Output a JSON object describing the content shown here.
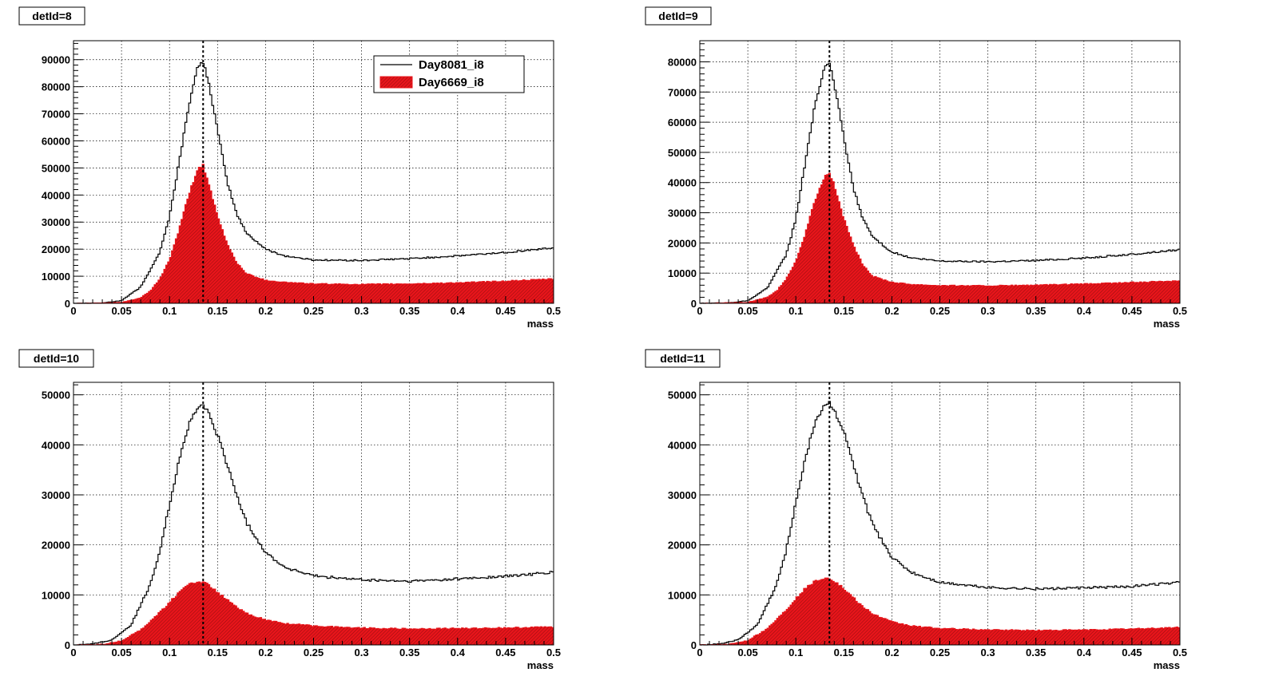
{
  "chart_data": [
    {
      "type": "line",
      "title": "detId=8",
      "xlabel": "mass",
      "ylabel": "",
      "xlim": [
        0,
        0.5
      ],
      "ylim": [
        0,
        97000
      ],
      "x_ticks": [
        "0",
        "0.05",
        "0.1",
        "0.15",
        "0.2",
        "0.25",
        "0.3",
        "0.35",
        "0.4",
        "0.45",
        "0.5"
      ],
      "y_ticks": [
        "0",
        "10000",
        "20000",
        "30000",
        "40000",
        "50000",
        "60000",
        "70000",
        "80000",
        "90000"
      ],
      "grid": true,
      "legend_position": "top-right",
      "reference_line_x": 0.135,
      "series": [
        {
          "name": "Day8081_i8",
          "style": "line",
          "color": "#000000",
          "x": [
            0,
            0.03,
            0.05,
            0.07,
            0.09,
            0.1,
            0.11,
            0.12,
            0.13,
            0.135,
            0.14,
            0.15,
            0.16,
            0.17,
            0.18,
            0.2,
            0.22,
            0.25,
            0.3,
            0.35,
            0.4,
            0.45,
            0.5
          ],
          "y": [
            0,
            100,
            1000,
            6000,
            19000,
            32000,
            52000,
            73000,
            88000,
            89000,
            83000,
            64000,
            45000,
            33000,
            26000,
            20000,
            17500,
            16000,
            15800,
            16500,
            17500,
            18800,
            20500
          ]
        },
        {
          "name": "Day6669_i8",
          "style": "filled",
          "color": "#e8151b",
          "x": [
            0,
            0.05,
            0.07,
            0.08,
            0.09,
            0.1,
            0.11,
            0.12,
            0.13,
            0.135,
            0.14,
            0.15,
            0.16,
            0.17,
            0.18,
            0.2,
            0.22,
            0.25,
            0.3,
            0.35,
            0.4,
            0.45,
            0.5
          ],
          "y": [
            0,
            300,
            2000,
            4500,
            9000,
            16000,
            27000,
            40000,
            50000,
            51000,
            45000,
            32000,
            22000,
            15000,
            11000,
            8500,
            7800,
            7200,
            7000,
            7200,
            7600,
            8200,
            9000
          ]
        }
      ]
    },
    {
      "type": "line",
      "title": "detId=9",
      "xlabel": "mass",
      "ylabel": "",
      "xlim": [
        0,
        0.5
      ],
      "ylim": [
        0,
        87000
      ],
      "x_ticks": [
        "0",
        "0.05",
        "0.1",
        "0.15",
        "0.2",
        "0.25",
        "0.3",
        "0.35",
        "0.4",
        "0.45",
        "0.5"
      ],
      "y_ticks": [
        "0",
        "10000",
        "20000",
        "30000",
        "40000",
        "50000",
        "60000",
        "70000",
        "80000"
      ],
      "grid": true,
      "reference_line_x": 0.135,
      "series": [
        {
          "name": "Day8081_i8",
          "style": "line",
          "color": "#000000",
          "x": [
            0,
            0.03,
            0.05,
            0.07,
            0.09,
            0.1,
            0.11,
            0.12,
            0.13,
            0.135,
            0.14,
            0.15,
            0.16,
            0.17,
            0.18,
            0.2,
            0.22,
            0.25,
            0.3,
            0.35,
            0.4,
            0.45,
            0.5
          ],
          "y": [
            0,
            100,
            900,
            5000,
            16000,
            28000,
            47000,
            66000,
            78000,
            79000,
            73000,
            55000,
            38000,
            28000,
            22000,
            17000,
            15000,
            14000,
            13800,
            14200,
            15000,
            16200,
            17800
          ]
        },
        {
          "name": "Day6669_i8",
          "style": "filled",
          "color": "#e8151b",
          "x": [
            0,
            0.05,
            0.07,
            0.08,
            0.09,
            0.1,
            0.11,
            0.12,
            0.13,
            0.135,
            0.14,
            0.15,
            0.16,
            0.17,
            0.18,
            0.2,
            0.22,
            0.25,
            0.3,
            0.35,
            0.4,
            0.45,
            0.5
          ],
          "y": [
            0,
            300,
            2000,
            4000,
            8000,
            14000,
            23000,
            34000,
            42000,
            43500,
            39000,
            28000,
            19000,
            12500,
            9000,
            7000,
            6300,
            5900,
            5800,
            6000,
            6400,
            6900,
            7500
          ]
        }
      ]
    },
    {
      "type": "line",
      "title": "detId=10",
      "xlabel": "mass",
      "ylabel": "",
      "xlim": [
        0,
        0.5
      ],
      "ylim": [
        0,
        52500
      ],
      "x_ticks": [
        "0",
        "0.05",
        "0.1",
        "0.15",
        "0.2",
        "0.25",
        "0.3",
        "0.35",
        "0.4",
        "0.45",
        "0.5"
      ],
      "y_ticks": [
        "0",
        "10000",
        "20000",
        "30000",
        "40000",
        "50000"
      ],
      "grid": true,
      "reference_line_x": 0.135,
      "series": [
        {
          "name": "Day8081_i8",
          "style": "line",
          "color": "#000000",
          "x": [
            0,
            0.02,
            0.04,
            0.06,
            0.08,
            0.09,
            0.1,
            0.11,
            0.12,
            0.13,
            0.135,
            0.14,
            0.15,
            0.16,
            0.17,
            0.18,
            0.2,
            0.22,
            0.25,
            0.3,
            0.35,
            0.4,
            0.45,
            0.5
          ],
          "y": [
            0,
            200,
            1000,
            4000,
            12000,
            19000,
            28000,
            37000,
            44000,
            47500,
            48000,
            46500,
            42000,
            36000,
            30000,
            24500,
            18500,
            15500,
            13800,
            13000,
            12700,
            13200,
            13700,
            14500
          ]
        },
        {
          "name": "Day6669_i8",
          "style": "filled",
          "color": "#e8151b",
          "x": [
            0,
            0.03,
            0.05,
            0.07,
            0.09,
            0.1,
            0.11,
            0.12,
            0.13,
            0.135,
            0.14,
            0.15,
            0.16,
            0.17,
            0.18,
            0.2,
            0.22,
            0.25,
            0.3,
            0.35,
            0.4,
            0.45,
            0.5
          ],
          "y": [
            0,
            100,
            800,
            3000,
            6500,
            8500,
            10500,
            12000,
            12700,
            12600,
            12000,
            10500,
            9000,
            7500,
            6300,
            5000,
            4300,
            3800,
            3400,
            3200,
            3300,
            3400,
            3600
          ]
        }
      ]
    },
    {
      "type": "line",
      "title": "detId=11",
      "xlabel": "mass",
      "ylabel": "",
      "xlim": [
        0,
        0.5
      ],
      "ylim": [
        0,
        52500
      ],
      "x_ticks": [
        "0",
        "0.05",
        "0.1",
        "0.15",
        "0.2",
        "0.25",
        "0.3",
        "0.35",
        "0.4",
        "0.45",
        "0.5"
      ],
      "y_ticks": [
        "0",
        "10000",
        "20000",
        "30000",
        "40000",
        "50000"
      ],
      "grid": true,
      "reference_line_x": 0.135,
      "series": [
        {
          "name": "Day8081_i8",
          "style": "line",
          "color": "#000000",
          "x": [
            0,
            0.02,
            0.04,
            0.06,
            0.08,
            0.09,
            0.1,
            0.11,
            0.12,
            0.13,
            0.135,
            0.14,
            0.15,
            0.16,
            0.17,
            0.18,
            0.2,
            0.22,
            0.25,
            0.3,
            0.35,
            0.4,
            0.45,
            0.5
          ],
          "y": [
            0,
            200,
            1000,
            4000,
            12000,
            19000,
            28500,
            37500,
            44500,
            48000,
            48300,
            47000,
            42500,
            36000,
            29500,
            24000,
            17500,
            14500,
            12500,
            11500,
            11200,
            11400,
            11700,
            12500
          ]
        },
        {
          "name": "Day6669_i8",
          "style": "filled",
          "color": "#e8151b",
          "x": [
            0,
            0.03,
            0.05,
            0.07,
            0.09,
            0.1,
            0.11,
            0.12,
            0.13,
            0.135,
            0.14,
            0.15,
            0.16,
            0.17,
            0.18,
            0.2,
            0.22,
            0.25,
            0.3,
            0.35,
            0.4,
            0.45,
            0.5
          ],
          "y": [
            0,
            100,
            900,
            3200,
            7000,
            9200,
            11300,
            12800,
            13400,
            13300,
            12800,
            11200,
            9400,
            7600,
            6200,
            4600,
            3800,
            3300,
            3000,
            2900,
            3000,
            3200,
            3500
          ]
        }
      ]
    }
  ],
  "colors": {
    "accent": "#e8151b",
    "hatch": "#7a0a0c",
    "grid": "#000000"
  }
}
